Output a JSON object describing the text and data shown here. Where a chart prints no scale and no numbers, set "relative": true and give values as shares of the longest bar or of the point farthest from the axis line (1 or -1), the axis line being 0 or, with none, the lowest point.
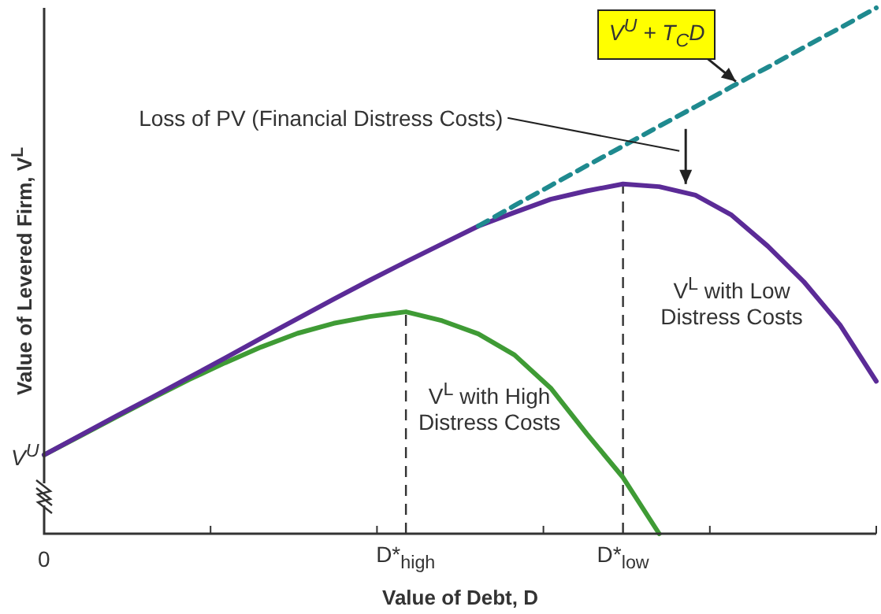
{
  "chart_data": {
    "type": "line",
    "relative": true,
    "xlabel": "Value of Debt, D",
    "ylabel": "Value of Levered Firm, V$^{L}$",
    "legend": false,
    "marker": "none",
    "categories": [
      "0",
      null,
      null,
      null,
      null,
      null,
      null,
      null,
      null,
      null,
      "D*$_{high}$",
      null,
      null,
      null,
      null,
      null,
      "D*$_{low}$",
      null,
      null,
      null,
      null,
      null,
      null,
      null
    ],
    "series": [
      {
        "name": "V$^{L}$ with High Distress Costs",
        "color": "#3f9b35",
        "line_style": "solid",
        "values": [
          0.15,
          0.186,
          0.222,
          0.258,
          0.293,
          0.325,
          0.355,
          0.381,
          0.4,
          0.413,
          0.422,
          0.405,
          0.38,
          0.34,
          0.277,
          0.19,
          0.107,
          0,
          null,
          null,
          null,
          null,
          null,
          null
        ]
      },
      {
        "name": "V$^{L}$ with Low Distress Costs",
        "color": "#5b2b97",
        "line_style": "solid",
        "values": [
          0.15,
          0.187,
          0.224,
          0.26,
          0.297,
          0.334,
          0.372,
          0.409,
          0.446,
          0.482,
          0.517,
          0.551,
          0.585,
          0.611,
          0.636,
          0.652,
          0.665,
          0.66,
          0.644,
          0.606,
          0.547,
          0.479,
          0.397,
          0.29
        ]
      },
      {
        "name": "V$^{U}$ + T$_{C}$D",
        "color": "#1f8a8f",
        "line_style": "dashed",
        "values": [
          null,
          null,
          null,
          null,
          null,
          null,
          null,
          null,
          null,
          null,
          null,
          null,
          0.585,
          0.624,
          0.662,
          0.7,
          0.737,
          0.775,
          0.812,
          0.85,
          0.887,
          0.925,
          0.962,
          1
        ]
      }
    ],
    "ref_lines": [
      {
        "axis": "x",
        "value": "D*$_{high}$",
        "color": "#333333",
        "line_style": "dashed"
      },
      {
        "axis": "x",
        "value": "D*$_{low}$",
        "color": "#333333",
        "line_style": "dashed"
      }
    ],
    "annotations": [
      "Loss of PV (Financial Distress Costs)",
      "V$^{U}$"
    ]
  }
}
